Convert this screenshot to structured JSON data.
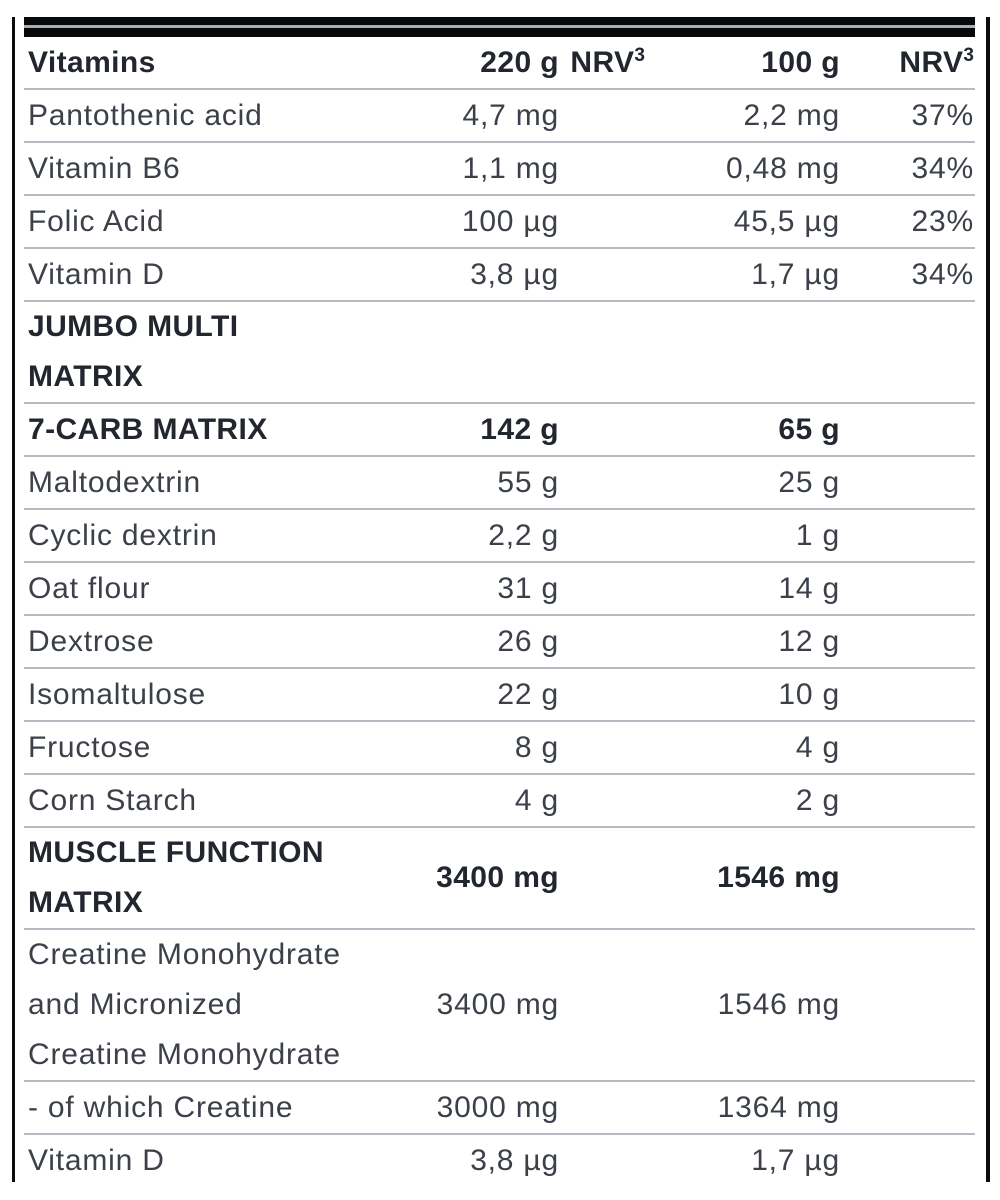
{
  "frame": {
    "bar_color": "#060809",
    "stripe_color": "#a9adb5",
    "separator_color": "#b6bac3",
    "text_regular_color": "#3b4049",
    "text_bold_color": "#22262e"
  },
  "table": {
    "rows": [
      {
        "type": "header",
        "label_lines": [
          "Vitamins"
        ],
        "v220": "220 g",
        "nrv220": {
          "text": "NRV",
          "sup": "3"
        },
        "v100": "100 g",
        "nrv100": {
          "text": "NRV",
          "sup": "3"
        }
      },
      {
        "type": "row",
        "label_lines": [
          "Pantothenic acid"
        ],
        "v220": "4,7 mg",
        "nrv220": "",
        "v100": "2,2 mg",
        "nrv100": "37%"
      },
      {
        "type": "row",
        "label_lines": [
          "Vitamin B6"
        ],
        "v220": "1,1 mg",
        "nrv220": "",
        "v100": "0,48 mg",
        "nrv100": "34%"
      },
      {
        "type": "row",
        "label_lines": [
          "Folic Acid"
        ],
        "v220": "100 µg",
        "nrv220": "",
        "v100": "45,5 µg",
        "nrv100": "23%"
      },
      {
        "type": "row",
        "label_lines": [
          "Vitamin D"
        ],
        "v220": "3,8 µg",
        "nrv220": "",
        "v100": "1,7 µg",
        "nrv100": "34%"
      },
      {
        "type": "section",
        "label_lines": [
          "JUMBO MULTI",
          "MATRIX"
        ],
        "v220": "",
        "nrv220": "",
        "v100": "",
        "nrv100": ""
      },
      {
        "type": "section",
        "label_lines": [
          "7-CARB MATRIX"
        ],
        "v220": "142 g",
        "nrv220": "",
        "v100": "65 g",
        "nrv100": ""
      },
      {
        "type": "row",
        "label_lines": [
          "Maltodextrin"
        ],
        "v220": "55 g",
        "nrv220": "",
        "v100": "25 g",
        "nrv100": ""
      },
      {
        "type": "row",
        "label_lines": [
          "Cyclic dextrin"
        ],
        "v220": "2,2 g",
        "nrv220": "",
        "v100": "1 g",
        "nrv100": ""
      },
      {
        "type": "row",
        "label_lines": [
          "Oat flour"
        ],
        "v220": "31 g",
        "nrv220": "",
        "v100": "14 g",
        "nrv100": ""
      },
      {
        "type": "row",
        "label_lines": [
          "Dextrose"
        ],
        "v220": "26 g",
        "nrv220": "",
        "v100": "12 g",
        "nrv100": ""
      },
      {
        "type": "row",
        "label_lines": [
          "Isomaltulose"
        ],
        "v220": "22 g",
        "nrv220": "",
        "v100": "10 g",
        "nrv100": ""
      },
      {
        "type": "row",
        "label_lines": [
          "Fructose"
        ],
        "v220": "8 g",
        "nrv220": "",
        "v100": "4 g",
        "nrv100": ""
      },
      {
        "type": "row",
        "label_lines": [
          "Corn Starch"
        ],
        "v220": "4 g",
        "nrv220": "",
        "v100": "2 g",
        "nrv100": ""
      },
      {
        "type": "section",
        "label_lines": [
          "MUSCLE FUNCTION",
          "MATRIX"
        ],
        "v220": "3400 mg",
        "nrv220": "",
        "v100": "1546 mg",
        "nrv100": ""
      },
      {
        "type": "row",
        "label_lines": [
          "Creatine Monohydrate",
          "and Micronized",
          "Creatine Monohydrate"
        ],
        "v220": "3400 mg",
        "nrv220": "",
        "v100": "1546 mg",
        "nrv100": ""
      },
      {
        "type": "row",
        "label_lines": [
          "- of which Creatine"
        ],
        "v220": "3000 mg",
        "nrv220": "",
        "v100": "1364 mg",
        "nrv100": ""
      },
      {
        "type": "row",
        "label_lines": [
          "Vitamin D"
        ],
        "v220": "3,8 µg",
        "nrv220": "",
        "v100": "1,7 µg",
        "nrv100": "",
        "no_border": true
      }
    ]
  }
}
